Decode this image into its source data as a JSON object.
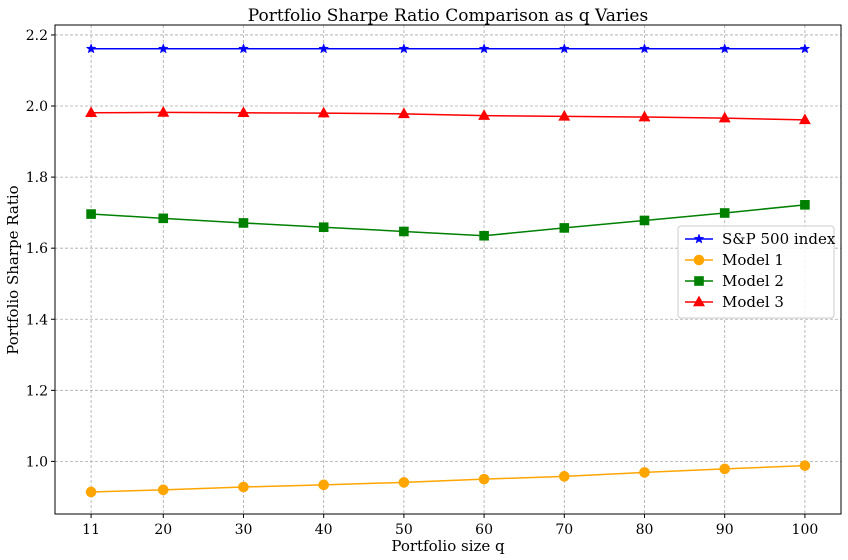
{
  "chart_data": {
    "type": "line",
    "title": "Portfolio Sharpe Ratio Comparison as q Varies",
    "xlabel": "Portfolio size q",
    "ylabel": "Portfolio Sharpe Ratio",
    "x_ticks": [
      11,
      20,
      30,
      40,
      50,
      60,
      70,
      80,
      90,
      100
    ],
    "x_tick_labels": [
      "11",
      "20",
      "30",
      "40",
      "50",
      "60",
      "70",
      "80",
      "90",
      "100"
    ],
    "y_ticks": [
      1.0,
      1.2,
      1.4,
      1.6,
      1.8,
      2.0,
      2.2
    ],
    "y_tick_labels": [
      "1.0",
      "1.2",
      "1.4",
      "1.6",
      "1.8",
      "2.0",
      "2.2"
    ],
    "xlim": [
      6.5,
      104.5
    ],
    "ylim": [
      0.852,
      2.228
    ],
    "grid": true,
    "legend_position": "center-right",
    "x": [
      11,
      20,
      30,
      40,
      50,
      60,
      70,
      80,
      90,
      100
    ],
    "series": [
      {
        "name": "S&P 500 index",
        "color": "#0000ff",
        "marker": "star",
        "values": [
          2.161,
          2.161,
          2.161,
          2.161,
          2.161,
          2.161,
          2.161,
          2.161,
          2.161,
          2.161
        ]
      },
      {
        "name": "Model 1",
        "color": "#ffa500",
        "marker": "circle",
        "values": [
          0.914,
          0.92,
          0.928,
          0.934,
          0.941,
          0.95,
          0.958,
          0.969,
          0.979,
          0.988
        ]
      },
      {
        "name": "Model 2",
        "color": "#008000",
        "marker": "square",
        "values": [
          1.696,
          1.684,
          1.671,
          1.659,
          1.647,
          1.635,
          1.657,
          1.678,
          1.699,
          1.722
        ]
      },
      {
        "name": "Model 3",
        "color": "#ff0000",
        "marker": "triangle",
        "values": [
          1.981,
          1.982,
          1.981,
          1.98,
          1.978,
          1.973,
          1.971,
          1.969,
          1.966,
          1.961
        ]
      }
    ]
  }
}
